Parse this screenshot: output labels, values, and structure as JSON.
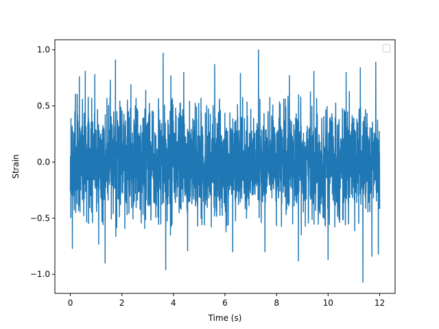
{
  "chart_data": {
    "type": "line",
    "title": "",
    "xlabel": "Time (s)",
    "ylabel": "Strain",
    "xlim": [
      -0.6,
      12.6
    ],
    "ylim": [
      -1.17,
      1.09
    ],
    "xticks": [
      0,
      2,
      4,
      6,
      8,
      10,
      12
    ],
    "xtick_labels": [
      "0",
      "2",
      "4",
      "6",
      "8",
      "10",
      "12"
    ],
    "yticks": [
      -1.0,
      -0.5,
      0.0,
      0.5,
      1.0
    ],
    "ytick_labels": [
      "−1.0",
      "−0.5",
      "0.0",
      "0.5",
      "1.0"
    ],
    "grid": false,
    "legend": {
      "location": "top-right",
      "entries": []
    },
    "series": [
      {
        "color": "#1f77b4",
        "x_range": [
          0,
          12
        ],
        "description_values": {
          "typical_min": -0.5,
          "typical_max": 0.5
        },
        "peaks": [
          {
            "x": 0.08,
            "y": 0.66
          },
          {
            "x": 0.35,
            "y": 0.76
          },
          {
            "x": 0.58,
            "y": 0.81
          },
          {
            "x": 0.95,
            "y": 0.78
          },
          {
            "x": 1.55,
            "y": 0.73
          },
          {
            "x": 1.75,
            "y": 0.91
          },
          {
            "x": 2.35,
            "y": 0.69
          },
          {
            "x": 3.6,
            "y": 0.97
          },
          {
            "x": 3.9,
            "y": 0.77
          },
          {
            "x": 4.4,
            "y": 0.8
          },
          {
            "x": 5.6,
            "y": 0.87
          },
          {
            "x": 6.6,
            "y": 0.79
          },
          {
            "x": 7.3,
            "y": 1.0
          },
          {
            "x": 8.5,
            "y": 0.77
          },
          {
            "x": 9.45,
            "y": 0.81
          },
          {
            "x": 10.7,
            "y": 0.8
          },
          {
            "x": 11.25,
            "y": 0.84
          },
          {
            "x": 11.85,
            "y": 0.89
          }
        ],
        "troughs": [
          {
            "x": 0.08,
            "y": -0.77
          },
          {
            "x": 1.35,
            "y": -0.9
          },
          {
            "x": 1.1,
            "y": -0.73
          },
          {
            "x": 3.7,
            "y": -0.96
          },
          {
            "x": 4.55,
            "y": -0.79
          },
          {
            "x": 6.3,
            "y": -0.8
          },
          {
            "x": 7.55,
            "y": -0.8
          },
          {
            "x": 8.85,
            "y": -0.88
          },
          {
            "x": 10.0,
            "y": -0.87
          },
          {
            "x": 11.35,
            "y": -1.07
          },
          {
            "x": 11.7,
            "y": -0.84
          },
          {
            "x": 11.95,
            "y": -0.82
          }
        ]
      }
    ]
  }
}
